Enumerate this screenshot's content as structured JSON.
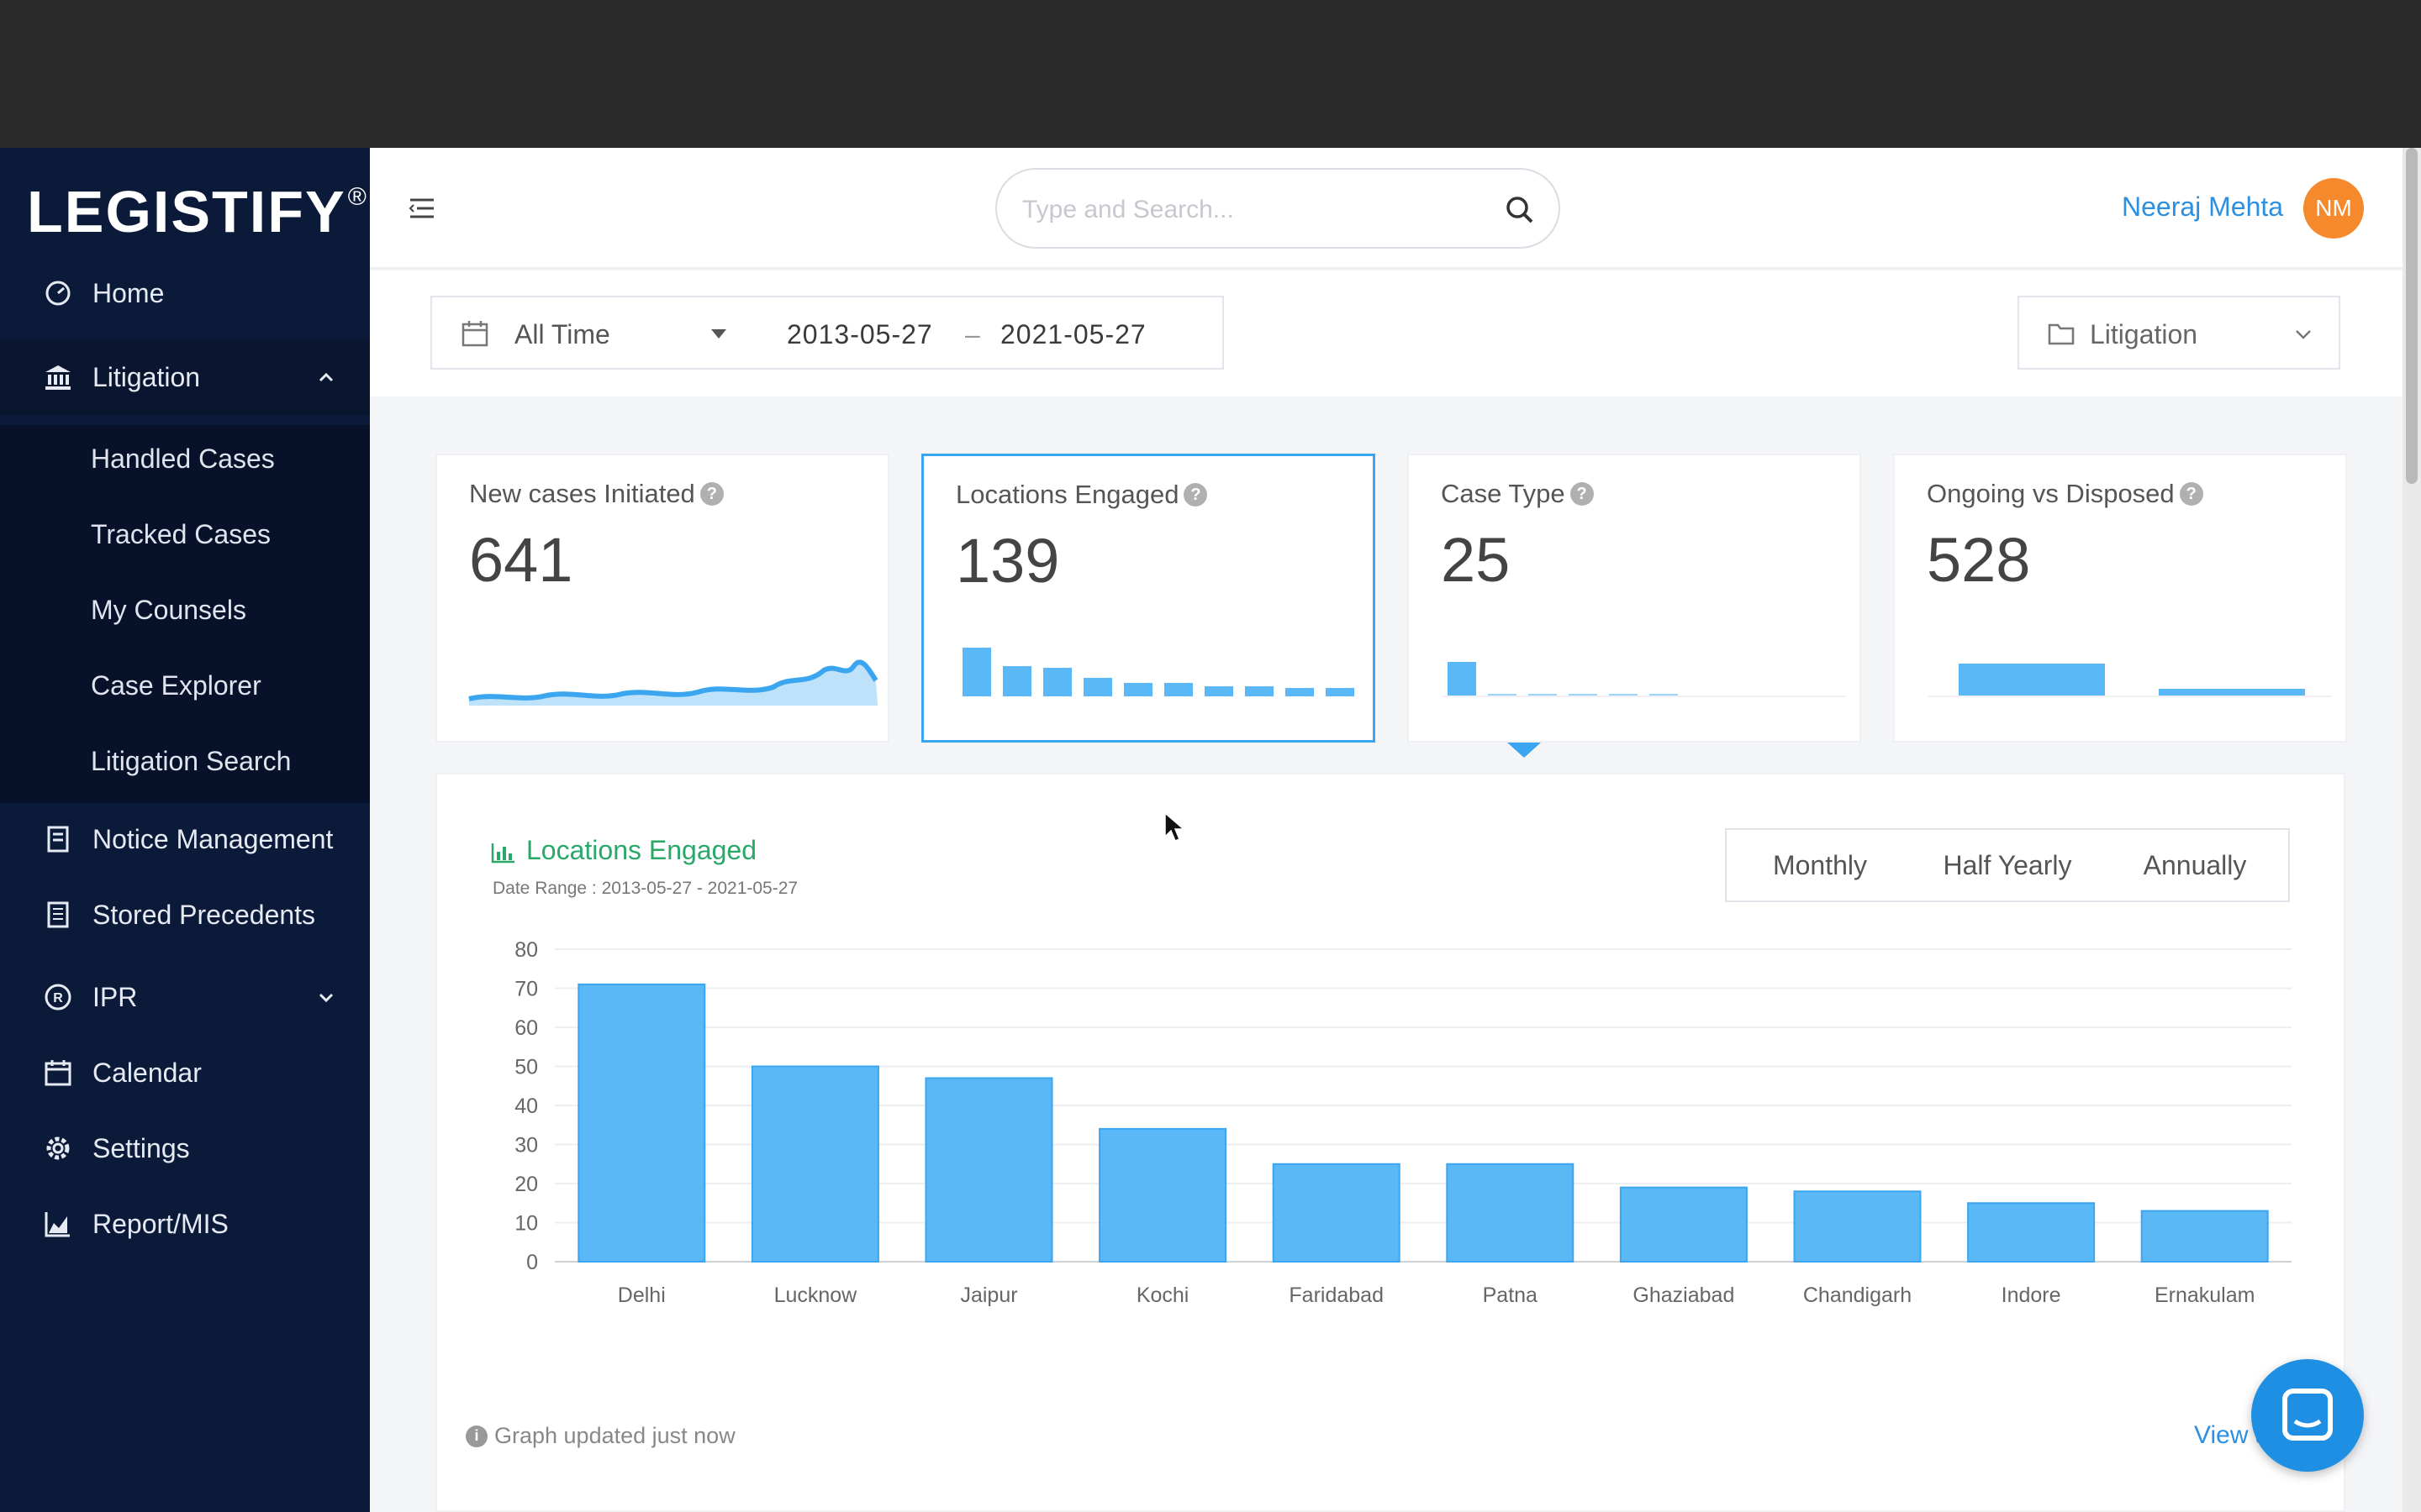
{
  "app": {
    "logo": "LEGISTIFY",
    "logo_mark": "®"
  },
  "sidebar": {
    "items": [
      {
        "label": "Home",
        "icon": "dashboard-icon"
      },
      {
        "label": "Litigation",
        "icon": "bank-icon",
        "expanded": true
      },
      {
        "label": "Notice Management",
        "icon": "notice-icon"
      },
      {
        "label": "Stored Precedents",
        "icon": "document-icon"
      },
      {
        "label": "IPR",
        "icon": "registered-icon"
      },
      {
        "label": "Calendar",
        "icon": "calendar-icon"
      },
      {
        "label": "Settings",
        "icon": "gear-icon"
      },
      {
        "label": "Report/MIS",
        "icon": "chart-icon"
      }
    ],
    "litigation_sub": [
      "Handled Cases",
      "Tracked Cases",
      "My Counsels",
      "Case Explorer",
      "Litigation Search"
    ]
  },
  "header": {
    "search_placeholder": "Type and Search...",
    "user_name": "Neeraj Mehta",
    "user_initials": "NM",
    "avatar_color": "#f5892b"
  },
  "filters": {
    "range": "All Time",
    "date_from": "2013-05-27",
    "date_sep": "–",
    "date_to": "2021-05-27",
    "module": "Litigation"
  },
  "cards": [
    {
      "title": "New cases Initiated",
      "value": "641"
    },
    {
      "title": "Locations Engaged",
      "value": "139",
      "selected": true
    },
    {
      "title": "Case Type",
      "value": "25"
    },
    {
      "title": "Ongoing vs Disposed",
      "value": "528"
    }
  ],
  "chart_panel": {
    "title": "Locations Engaged",
    "date_range": "Date Range : 2013-05-27 - 2021-05-27",
    "periods": [
      "Monthly",
      "Half Yearly",
      "Annually"
    ],
    "footer_note": "Graph updated just now",
    "view_all": "View all Ca"
  },
  "colors": {
    "accent": "#3ba6ef",
    "bar": "#5ab8f7",
    "title_green": "#29a86a",
    "sidebar": "#0c1a3a"
  },
  "chart_data": {
    "type": "bar",
    "title": "Locations Engaged",
    "categories": [
      "Delhi",
      "Lucknow",
      "Jaipur",
      "Kochi",
      "Faridabad",
      "Patna",
      "Ghaziabad",
      "Chandigarh",
      "Indore",
      "Ernakulam"
    ],
    "values": [
      71,
      50,
      47,
      34,
      25,
      25,
      19,
      18,
      15,
      13
    ],
    "ylim": [
      0,
      80
    ],
    "yticks": [
      0,
      10,
      20,
      30,
      40,
      50,
      60,
      70,
      80
    ],
    "grid": true,
    "xlabel": "",
    "ylabel": ""
  }
}
